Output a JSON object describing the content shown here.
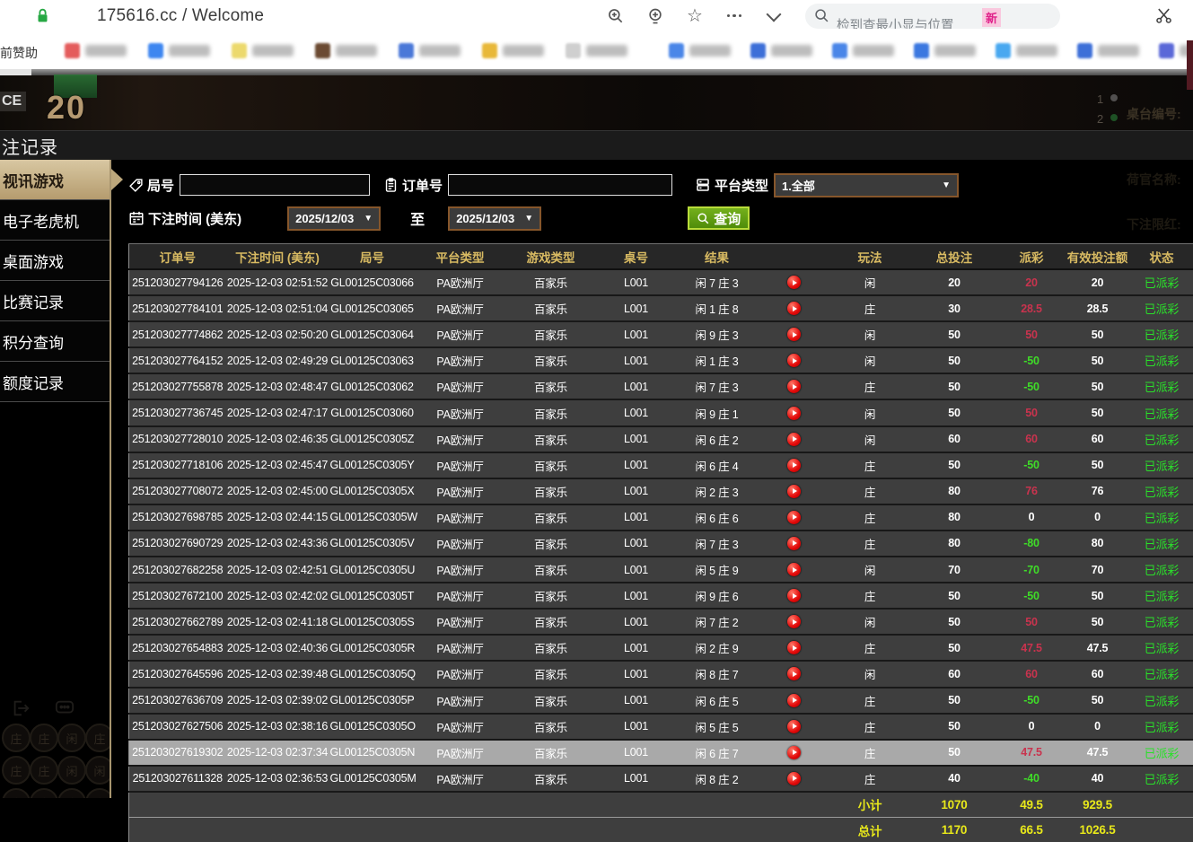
{
  "browser": {
    "title": "175616.cc / Welcome",
    "search_placeholder": "检到查最小显与位置",
    "search_badge": "新",
    "icons": [
      "zoom-in-icon",
      "add-circle-icon",
      "star-icon",
      "more-icon",
      "chevron-down-icon",
      "search-icon",
      "scissors-icon",
      "lock-icon"
    ]
  },
  "bookmarks_bar": {
    "left_text": "前赞助",
    "left_items": [
      "#e45c5c",
      "#3d86f0",
      "#ecd96d",
      "#6b4a32",
      "#4a78d8",
      "#e8b839",
      "#cfcfcf"
    ],
    "right_items": [
      "#4a86e8",
      "#3d6fd8",
      "#4a86e8",
      "#3b78e0",
      "#49a8f0",
      "#3d6fd8",
      "#5a68d8",
      "#9aa0a6",
      "#e8c54a"
    ]
  },
  "video_overlay": {
    "score": "20",
    "corner_label": "CE",
    "dim_numbers": [
      "1",
      "2"
    ],
    "dim_labels": [
      "桌台编号:",
      "荷官名称:",
      "下注限红:"
    ]
  },
  "page": {
    "title": "注记录"
  },
  "sidebar": {
    "items": [
      {
        "label": "视讯游戏",
        "active": true
      },
      {
        "label": "电子老虎机",
        "active": false
      },
      {
        "label": "桌面游戏",
        "active": false
      },
      {
        "label": "比赛记录",
        "active": false
      },
      {
        "label": "积分查询",
        "active": false
      },
      {
        "label": "额度记录",
        "active": false
      }
    ],
    "dim_chips": [
      "庄",
      "庄",
      "闲",
      "庄",
      "庄",
      "庄",
      "闲",
      "闲",
      "庄",
      "庄",
      "庄",
      "庄"
    ]
  },
  "filters": {
    "round_label": "局号",
    "round_value": "",
    "order_label": "订单号",
    "order_value": "",
    "platform_label": "平台类型",
    "platform_value": "1.全部",
    "time_label": "下注时间 (美东)",
    "date_from": "2025/12/03",
    "date_to": "2025/12/03",
    "to_label": "至",
    "query_label": "查询",
    "dropdown_arrow": "▼"
  },
  "table": {
    "columns": [
      "订单号",
      "下注时间 (美东)",
      "局号",
      "平台类型",
      "游戏类型",
      "桌号",
      "结果",
      "",
      "玩法",
      "总投注",
      "派彩",
      "有效投注额",
      "状态"
    ],
    "rows": [
      {
        "order": "251203027794126",
        "time": "2025-12-03 02:51:52",
        "round": "GL00125C03066",
        "platform": "PA欧洲厅",
        "game": "百家乐",
        "table_no": "L001",
        "result": "闲 7 庄 3",
        "play": "闲",
        "bet": "20",
        "payout": "20",
        "valid": "20",
        "status": "已派彩"
      },
      {
        "order": "251203027784101",
        "time": "2025-12-03 02:51:04",
        "round": "GL00125C03065",
        "platform": "PA欧洲厅",
        "game": "百家乐",
        "table_no": "L001",
        "result": "闲 1 庄 8",
        "play": "庄",
        "bet": "30",
        "payout": "28.5",
        "valid": "28.5",
        "status": "已派彩"
      },
      {
        "order": "251203027774862",
        "time": "2025-12-03 02:50:20",
        "round": "GL00125C03064",
        "platform": "PA欧洲厅",
        "game": "百家乐",
        "table_no": "L001",
        "result": "闲 9 庄 3",
        "play": "闲",
        "bet": "50",
        "payout": "50",
        "valid": "50",
        "status": "已派彩"
      },
      {
        "order": "251203027764152",
        "time": "2025-12-03 02:49:29",
        "round": "GL00125C03063",
        "platform": "PA欧洲厅",
        "game": "百家乐",
        "table_no": "L001",
        "result": "闲 1 庄 3",
        "play": "闲",
        "bet": "50",
        "payout": "-50",
        "valid": "50",
        "status": "已派彩"
      },
      {
        "order": "251203027755878",
        "time": "2025-12-03 02:48:47",
        "round": "GL00125C03062",
        "platform": "PA欧洲厅",
        "game": "百家乐",
        "table_no": "L001",
        "result": "闲 7 庄 3",
        "play": "庄",
        "bet": "50",
        "payout": "-50",
        "valid": "50",
        "status": "已派彩"
      },
      {
        "order": "251203027736745",
        "time": "2025-12-03 02:47:17",
        "round": "GL00125C03060",
        "platform": "PA欧洲厅",
        "game": "百家乐",
        "table_no": "L001",
        "result": "闲 9 庄 1",
        "play": "闲",
        "bet": "50",
        "payout": "50",
        "valid": "50",
        "status": "已派彩"
      },
      {
        "order": "251203027728010",
        "time": "2025-12-03 02:46:35",
        "round": "GL00125C0305Z",
        "platform": "PA欧洲厅",
        "game": "百家乐",
        "table_no": "L001",
        "result": "闲 6 庄 2",
        "play": "闲",
        "bet": "60",
        "payout": "60",
        "valid": "60",
        "status": "已派彩"
      },
      {
        "order": "251203027718106",
        "time": "2025-12-03 02:45:47",
        "round": "GL00125C0305Y",
        "platform": "PA欧洲厅",
        "game": "百家乐",
        "table_no": "L001",
        "result": "闲 6 庄 4",
        "play": "庄",
        "bet": "50",
        "payout": "-50",
        "valid": "50",
        "status": "已派彩"
      },
      {
        "order": "251203027708072",
        "time": "2025-12-03 02:45:00",
        "round": "GL00125C0305X",
        "platform": "PA欧洲厅",
        "game": "百家乐",
        "table_no": "L001",
        "result": "闲 2 庄 3",
        "play": "庄",
        "bet": "80",
        "payout": "76",
        "valid": "76",
        "status": "已派彩"
      },
      {
        "order": "251203027698785",
        "time": "2025-12-03 02:44:15",
        "round": "GL00125C0305W",
        "platform": "PA欧洲厅",
        "game": "百家乐",
        "table_no": "L001",
        "result": "闲 6 庄 6",
        "play": "庄",
        "bet": "80",
        "payout": "0",
        "valid": "0",
        "status": "已派彩"
      },
      {
        "order": "251203027690729",
        "time": "2025-12-03 02:43:36",
        "round": "GL00125C0305V",
        "platform": "PA欧洲厅",
        "game": "百家乐",
        "table_no": "L001",
        "result": "闲 7 庄 3",
        "play": "庄",
        "bet": "80",
        "payout": "-80",
        "valid": "80",
        "status": "已派彩"
      },
      {
        "order": "251203027682258",
        "time": "2025-12-03 02:42:51",
        "round": "GL00125C0305U",
        "platform": "PA欧洲厅",
        "game": "百家乐",
        "table_no": "L001",
        "result": "闲 5 庄 9",
        "play": "闲",
        "bet": "70",
        "payout": "-70",
        "valid": "70",
        "status": "已派彩"
      },
      {
        "order": "251203027672100",
        "time": "2025-12-03 02:42:02",
        "round": "GL00125C0305T",
        "platform": "PA欧洲厅",
        "game": "百家乐",
        "table_no": "L001",
        "result": "闲 9 庄 6",
        "play": "庄",
        "bet": "50",
        "payout": "-50",
        "valid": "50",
        "status": "已派彩"
      },
      {
        "order": "251203027662789",
        "time": "2025-12-03 02:41:18",
        "round": "GL00125C0305S",
        "platform": "PA欧洲厅",
        "game": "百家乐",
        "table_no": "L001",
        "result": "闲 7 庄 2",
        "play": "闲",
        "bet": "50",
        "payout": "50",
        "valid": "50",
        "status": "已派彩"
      },
      {
        "order": "251203027654883",
        "time": "2025-12-03 02:40:36",
        "round": "GL00125C0305R",
        "platform": "PA欧洲厅",
        "game": "百家乐",
        "table_no": "L001",
        "result": "闲 2 庄 9",
        "play": "庄",
        "bet": "50",
        "payout": "47.5",
        "valid": "47.5",
        "status": "已派彩"
      },
      {
        "order": "251203027645596",
        "time": "2025-12-03 02:39:48",
        "round": "GL00125C0305Q",
        "platform": "PA欧洲厅",
        "game": "百家乐",
        "table_no": "L001",
        "result": "闲 8 庄 7",
        "play": "闲",
        "bet": "60",
        "payout": "60",
        "valid": "60",
        "status": "已派彩"
      },
      {
        "order": "251203027636709",
        "time": "2025-12-03 02:39:02",
        "round": "GL00125C0305P",
        "platform": "PA欧洲厅",
        "game": "百家乐",
        "table_no": "L001",
        "result": "闲 6 庄 5",
        "play": "庄",
        "bet": "50",
        "payout": "-50",
        "valid": "50",
        "status": "已派彩"
      },
      {
        "order": "251203027627506",
        "time": "2025-12-03 02:38:16",
        "round": "GL00125C0305O",
        "platform": "PA欧洲厅",
        "game": "百家乐",
        "table_no": "L001",
        "result": "闲 5 庄 5",
        "play": "庄",
        "bet": "50",
        "payout": "0",
        "valid": "0",
        "status": "已派彩"
      },
      {
        "order": "251203027619302",
        "time": "2025-12-03 02:37:34",
        "round": "GL00125C0305N",
        "platform": "PA欧洲厅",
        "game": "百家乐",
        "table_no": "L001",
        "result": "闲 6 庄 7",
        "play": "庄",
        "bet": "50",
        "payout": "47.5",
        "valid": "47.5",
        "status": "已派彩",
        "selected": true
      },
      {
        "order": "251203027611328",
        "time": "2025-12-03 02:36:53",
        "round": "GL00125C0305M",
        "platform": "PA欧洲厅",
        "game": "百家乐",
        "table_no": "L001",
        "result": "闲 8 庄 2",
        "play": "庄",
        "bet": "40",
        "payout": "-40",
        "valid": "40",
        "status": "已派彩"
      }
    ],
    "subtotal": {
      "label": "小计",
      "bet": "1070",
      "payout": "49.5",
      "valid": "929.5"
    },
    "total": {
      "label": "总计",
      "bet": "1170",
      "payout": "66.5",
      "valid": "1026.5"
    }
  },
  "colors": {
    "header_gold": "#d8ba62",
    "sidebar_active": "#c0a87e",
    "payout_positive_red": "#c9334e",
    "payout_negative_green": "#3fdc28",
    "status_paid_green": "#2ae02a",
    "totals_yellow": "#e8e81a",
    "selected_row_gray": "#a9a9a9",
    "date_border_brown": "#86562b",
    "query_button_green": "#5f9c12",
    "lock_green": "#27a844",
    "badge_pink": "#e0218a"
  }
}
